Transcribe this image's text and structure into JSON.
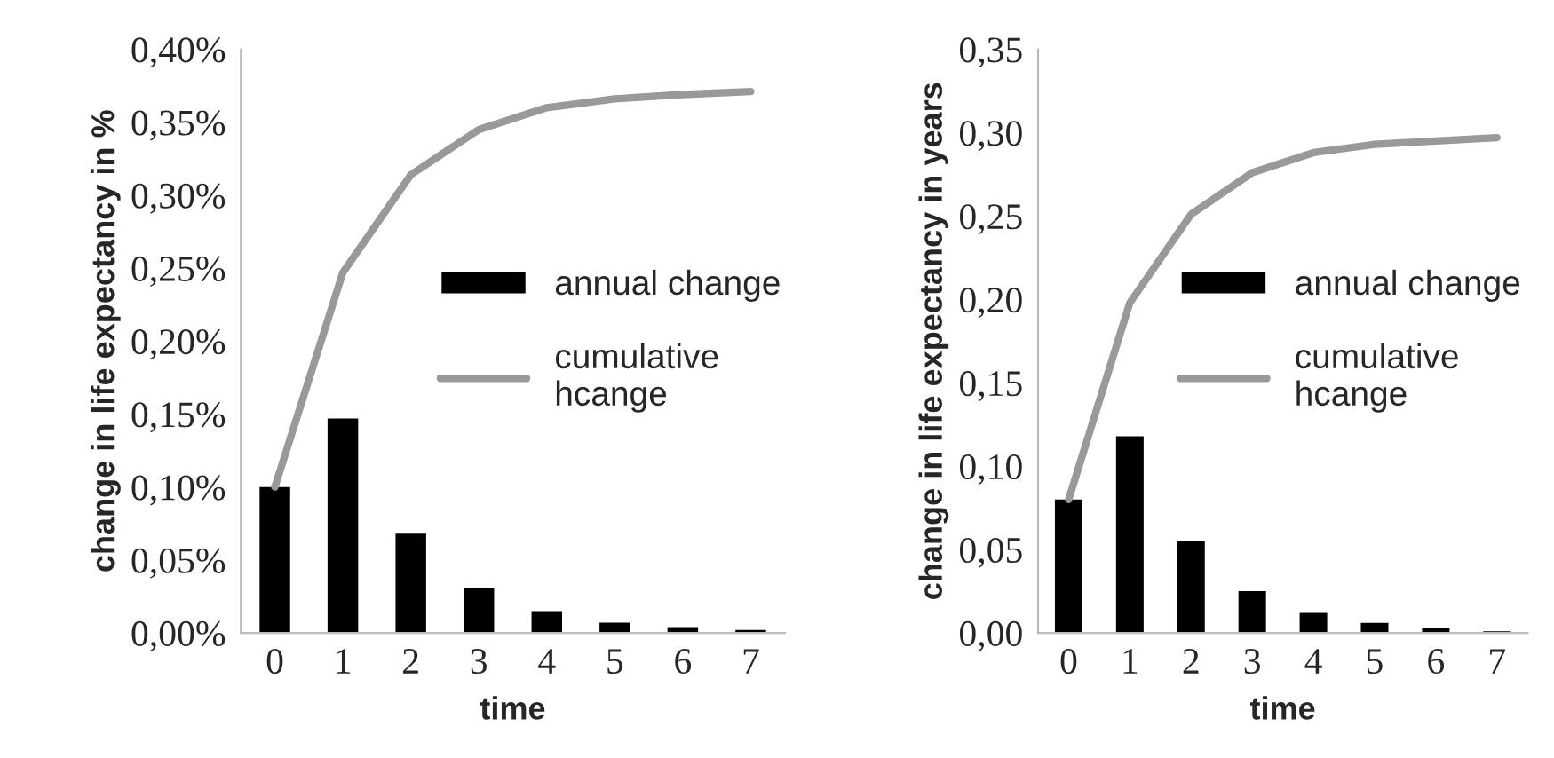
{
  "chart_data": [
    {
      "type": "bar",
      "categories": [
        "0",
        "1",
        "2",
        "3",
        "4",
        "5",
        "6",
        "7"
      ],
      "xlabel": "time",
      "ylabel": "change in life expectancy in %",
      "series": [
        {
          "name": "annual change",
          "color": "#000000",
          "values": [
            0.1,
            0.147,
            0.068,
            0.031,
            0.015,
            0.007,
            0.004,
            0.002
          ]
        },
        {
          "name": "cumulative\nhcange",
          "type": "line",
          "color": "#999999",
          "values": [
            0.1,
            0.247,
            0.314,
            0.345,
            0.36,
            0.366,
            0.369,
            0.371
          ]
        }
      ],
      "ylim": [
        0,
        0.4
      ],
      "yticks": [
        {
          "value": 0,
          "label": "0,00%"
        },
        {
          "value": 0.05,
          "label": "0,05%"
        },
        {
          "value": 0.1,
          "label": "0,10%"
        },
        {
          "value": 0.15,
          "label": "0,15%"
        },
        {
          "value": 0.2,
          "label": "0,20%"
        },
        {
          "value": 0.25,
          "label": "0,25%"
        },
        {
          "value": 0.3,
          "label": "0,30%"
        },
        {
          "value": 0.35,
          "label": "0,35%"
        },
        {
          "value": 0.4,
          "label": "0,40%"
        }
      ],
      "grid": false,
      "legend": "right",
      "marker": "none",
      "line_style": "solid"
    },
    {
      "type": "bar",
      "categories": [
        "0",
        "1",
        "2",
        "3",
        "4",
        "5",
        "6",
        "7"
      ],
      "xlabel": "time",
      "ylabel": "change in life expectancy in years",
      "series": [
        {
          "name": "annual change",
          "color": "#000000",
          "values": [
            0.08,
            0.118,
            0.055,
            0.025,
            0.012,
            0.006,
            0.003,
            0.001
          ]
        },
        {
          "name": "cumulative\nhcange",
          "type": "line",
          "color": "#999999",
          "values": [
            0.08,
            0.198,
            0.251,
            0.276,
            0.288,
            0.293,
            0.295,
            0.297
          ]
        }
      ],
      "ylim": [
        0,
        0.35
      ],
      "yticks": [
        {
          "value": 0,
          "label": "0,00"
        },
        {
          "value": 0.05,
          "label": "0,05"
        },
        {
          "value": 0.1,
          "label": "0,10"
        },
        {
          "value": 0.15,
          "label": "0,15"
        },
        {
          "value": 0.2,
          "label": "0,20"
        },
        {
          "value": 0.25,
          "label": "0,25"
        },
        {
          "value": 0.3,
          "label": "0,30"
        },
        {
          "value": 0.35,
          "label": "0,35"
        }
      ],
      "grid": false,
      "legend": "right",
      "marker": "none",
      "line_style": "solid"
    }
  ]
}
